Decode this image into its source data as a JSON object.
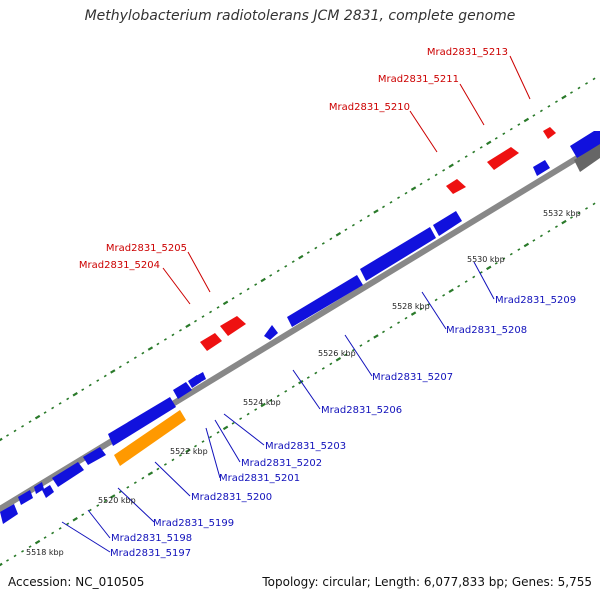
{
  "header": {
    "title": "Methylobacterium radiotolerans JCM 2831, complete genome"
  },
  "footer": {
    "accession": "Accession: NC_010505",
    "topology": "Topology: circular; Length: 6,077,833 bp; Genes: 5,755"
  },
  "colors": {
    "backbone": "#888888",
    "forward_gene": "#ee1111",
    "reverse_gene": "#1111dd",
    "highlight_gene": "#ff9900",
    "rna_gene": "#666666",
    "tick": "#2a7a2a",
    "forward_label": "#cc0000",
    "reverse_label": "#1111bb"
  },
  "scale_labels": [
    "5518 kbp",
    "5520 kbp",
    "5522 kbp",
    "5524 kbp",
    "5526 kbp",
    "5528 kbp",
    "5530 kbp",
    "5532 kbp"
  ],
  "forward_labels": [
    "Mrad2831_5204",
    "Mrad2831_5205",
    "Mrad2831_5210",
    "Mrad2831_5211",
    "Mrad2831_5213"
  ],
  "reverse_labels": [
    "Mrad2831_5197",
    "Mrad2831_5198",
    "Mrad2831_5199",
    "Mrad2831_5200",
    "Mrad2831_5201",
    "Mrad2831_5202",
    "Mrad2831_5203",
    "Mrad2831_5206",
    "Mrad2831_5207",
    "Mrad2831_5208",
    "Mrad2831_5209"
  ]
}
